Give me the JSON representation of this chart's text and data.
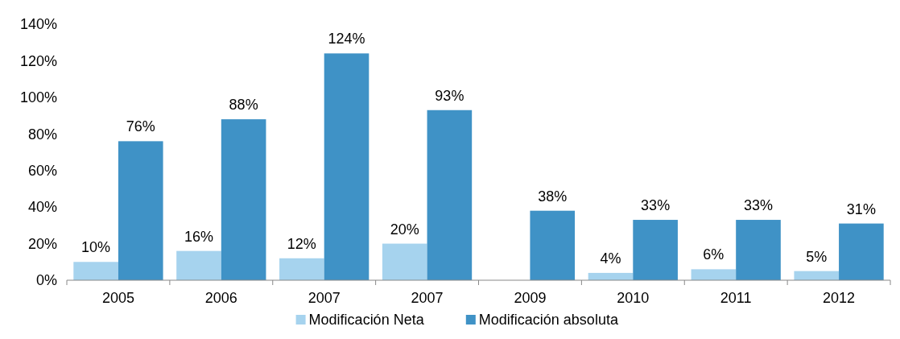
{
  "chart_data": {
    "type": "bar",
    "categories": [
      "2005",
      "2006",
      "2007",
      "2007",
      "2009",
      "2010",
      "2011",
      "2012"
    ],
    "series": [
      {
        "name": "Modificación Neta",
        "color": "#a6d3ee",
        "values": [
          10,
          16,
          12,
          20,
          null,
          4,
          6,
          5
        ],
        "value_labels": [
          "10%",
          "16%",
          "12%",
          "20%",
          null,
          "4%",
          "6%",
          "5%"
        ]
      },
      {
        "name": "Modificación absoluta",
        "color": "#3f92c6",
        "values": [
          76,
          88,
          124,
          93,
          38,
          33,
          33,
          31
        ],
        "value_labels": [
          "76%",
          "88%",
          "124%",
          "93%",
          "38%",
          "33%",
          "33%",
          "31%"
        ]
      }
    ],
    "ylim": [
      0,
      140
    ],
    "yticks": [
      {
        "value": 0,
        "label": "0%"
      },
      {
        "value": 20,
        "label": "20%"
      },
      {
        "value": 40,
        "label": "40%"
      },
      {
        "value": 60,
        "label": "60%"
      },
      {
        "value": 80,
        "label": "80%"
      },
      {
        "value": 100,
        "label": "100%"
      },
      {
        "value": 120,
        "label": "120%"
      },
      {
        "value": 140,
        "label": "140%"
      }
    ],
    "grid": false,
    "legend": "bottom"
  }
}
